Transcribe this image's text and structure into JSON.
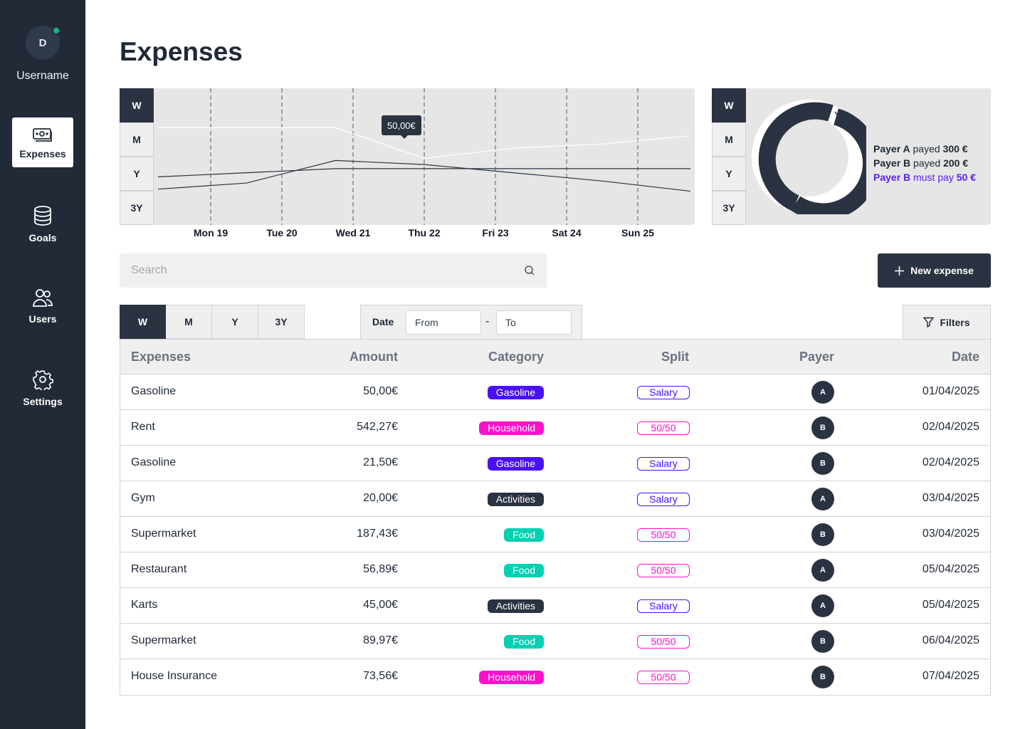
{
  "user": {
    "initial": "D",
    "name": "Username",
    "status_color": "#10b981"
  },
  "nav": {
    "items": [
      {
        "label": "Expenses",
        "icon": "money-icon",
        "active": true
      },
      {
        "label": "Goals",
        "icon": "database-icon",
        "active": false
      },
      {
        "label": "Users",
        "icon": "users-icon",
        "active": false
      },
      {
        "label": "Settings",
        "icon": "gear-icon",
        "active": false
      }
    ]
  },
  "page": {
    "title": "Expenses"
  },
  "periods": [
    "W",
    "M",
    "Y",
    "3Y"
  ],
  "active_period": "W",
  "line_chart": {
    "tooltip": "50,00€",
    "days": [
      "Mon 19",
      "Tue 20",
      "Wed 21",
      "Thu 22",
      "Fri 23",
      "Sat 24",
      "Sun 25"
    ]
  },
  "chart_data": {
    "type": "line",
    "x": [
      "Mon 19",
      "Tue 20",
      "Wed 21",
      "Thu 22",
      "Fri 23",
      "Sat 24",
      "Sun 25"
    ],
    "series": [
      {
        "color": "#ffffff",
        "values": [
          44,
          44,
          44,
          29,
          34,
          36,
          40
        ]
      },
      {
        "color": "#2b3241",
        "values": [
          20,
          22,
          24,
          24,
          24,
          24,
          24
        ]
      },
      {
        "color": "#2b3241",
        "values": [
          14,
          17,
          28,
          26,
          22,
          18,
          13
        ]
      }
    ],
    "highlight": {
      "x": "Thu 22",
      "label": "50,00€"
    },
    "grid": "dashed-vertical"
  },
  "split_summary": {
    "line1": {
      "payer": "Payer A",
      "verb": "payed",
      "amount": "300 €"
    },
    "line2": {
      "payer": "Payer B",
      "verb": "payed",
      "amount": "200 €"
    },
    "line3": {
      "payer": "Payer B",
      "verb": "must pay",
      "amount": "50 €"
    },
    "accent_color": "#5b21f0",
    "ring_color": "#2b3241"
  },
  "search": {
    "placeholder": "Search"
  },
  "new_expense": {
    "label": "New expense"
  },
  "date_filter": {
    "label": "Date",
    "from_placeholder": "From",
    "to_placeholder": "To",
    "separator": "-"
  },
  "filters": {
    "label": "Filters"
  },
  "table": {
    "headers": {
      "expenses": "Expenses",
      "amount": "Amount",
      "category": "Category",
      "split": "Split",
      "payer": "Payer",
      "date": "Date"
    },
    "rows": [
      {
        "expense": "Gasoline",
        "amount": "50,00€",
        "category": "Gasoline",
        "split": "Salary",
        "payer": "A",
        "date": "01/04/2025"
      },
      {
        "expense": "Rent",
        "amount": "542,27€",
        "category": "Household",
        "split": "50/50",
        "payer": "B",
        "date": "02/04/2025"
      },
      {
        "expense": "Gasoline",
        "amount": "21,50€",
        "category": "Gasoline",
        "split": "Salary",
        "payer": "B",
        "date": "02/04/2025"
      },
      {
        "expense": "Gym",
        "amount": "20,00€",
        "category": "Activities",
        "split": "Salary",
        "payer": "A",
        "date": "03/04/2025"
      },
      {
        "expense": "Supermarket",
        "amount": "187,43€",
        "category": "Food",
        "split": "50/50",
        "payer": "B",
        "date": "03/04/2025"
      },
      {
        "expense": "Restaurant",
        "amount": "56,89€",
        "category": "Food",
        "split": "50/50",
        "payer": "A",
        "date": "05/04/2025"
      },
      {
        "expense": "Karts",
        "amount": "45,00€",
        "category": "Activities",
        "split": "Salary",
        "payer": "A",
        "date": "05/04/2025"
      },
      {
        "expense": "Supermarket",
        "amount": "89,97€",
        "category": "Food",
        "split": "50/50",
        "payer": "B",
        "date": "06/04/2025"
      },
      {
        "expense": "House Insurance",
        "amount": "73,56€",
        "category": "Household",
        "split": "50/50",
        "payer": "B",
        "date": "07/04/2025"
      }
    ]
  },
  "category_colors": {
    "Gasoline": "#4a10f5",
    "Household": "#ff10cc",
    "Activities": "#2b3241",
    "Food": "#00d1b2"
  },
  "split_colors": {
    "Salary": "#4a10f5",
    "50/50": "#ff10cc"
  }
}
